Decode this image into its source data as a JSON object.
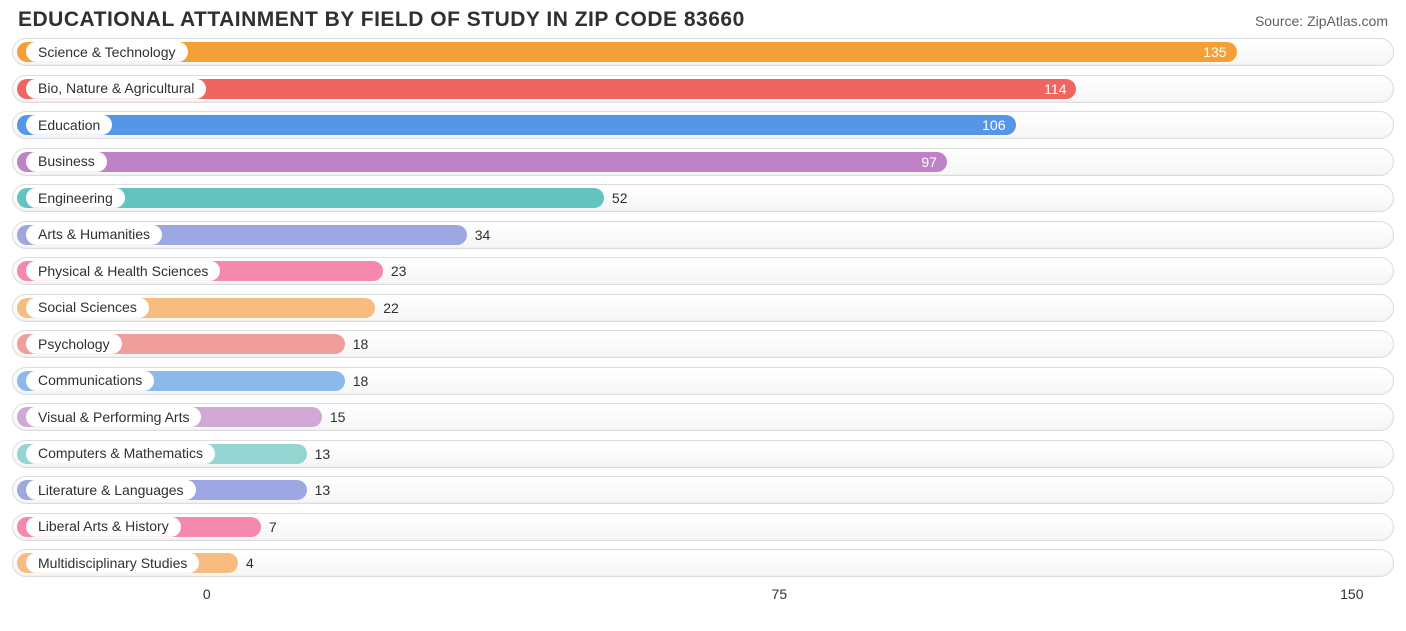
{
  "header": {
    "title": "EDUCATIONAL ATTAINMENT BY FIELD OF STUDY IN ZIP CODE 83660",
    "source": "Source: ZipAtlas.com"
  },
  "chart": {
    "type": "bar",
    "orientation": "horizontal",
    "background_color": "#ffffff",
    "row_border_color": "#dcdcdc",
    "title_color": "#303030",
    "label_fontsize": 14,
    "xlim": [
      -25,
      155
    ],
    "zero_offset": 25,
    "full_span": 180,
    "ticks": [
      {
        "value": 0,
        "label": "0"
      },
      {
        "value": 75,
        "label": "75"
      },
      {
        "value": 150,
        "label": "150"
      }
    ],
    "series": [
      {
        "label": "Science & Technology",
        "value": 135,
        "color": "#f5a037",
        "value_inside": true
      },
      {
        "label": "Bio, Nature & Agricultural",
        "value": 114,
        "color": "#ef6560",
        "value_inside": true
      },
      {
        "label": "Education",
        "value": 106,
        "color": "#5596e6",
        "value_inside": true
      },
      {
        "label": "Business",
        "value": 97,
        "color": "#c082c7",
        "value_inside": true
      },
      {
        "label": "Engineering",
        "value": 52,
        "color": "#63c4bf",
        "value_inside": false
      },
      {
        "label": "Arts & Humanities",
        "value": 34,
        "color": "#9da8e2",
        "value_inside": false
      },
      {
        "label": "Physical & Health Sciences",
        "value": 23,
        "color": "#f489ad",
        "value_inside": false
      },
      {
        "label": "Social Sciences",
        "value": 22,
        "color": "#f7bd80",
        "value_inside": false
      },
      {
        "label": "Psychology",
        "value": 18,
        "color": "#f09e9b",
        "value_inside": false
      },
      {
        "label": "Communications",
        "value": 18,
        "color": "#8bb9ec",
        "value_inside": false
      },
      {
        "label": "Visual & Performing Arts",
        "value": 15,
        "color": "#d2a8d7",
        "value_inside": false
      },
      {
        "label": "Computers & Mathematics",
        "value": 13,
        "color": "#94d5d2",
        "value_inside": false
      },
      {
        "label": "Literature & Languages",
        "value": 13,
        "color": "#9da8e2",
        "value_inside": false
      },
      {
        "label": "Liberal Arts & History",
        "value": 7,
        "color": "#f489ad",
        "value_inside": false
      },
      {
        "label": "Multidisciplinary Studies",
        "value": 4,
        "color": "#f7bd80",
        "value_inside": false
      }
    ]
  }
}
